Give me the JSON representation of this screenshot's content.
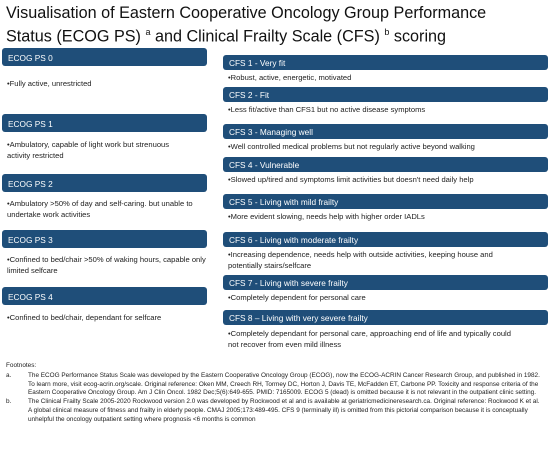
{
  "title": {
    "line1": "Visualisation of Eastern Cooperative Oncology Group Performance",
    "line2_a": "Status (ECOG PS) ",
    "sup_a": "a",
    "line2_b": " and Clinical Frailty Scale (CFS) ",
    "sup_b": "b",
    "line2_c": " scoring"
  },
  "ecog": [
    {
      "label": "ECOG PS 0",
      "desc": "•Fully active, unrestricted"
    },
    {
      "label": "ECOG PS 1",
      "desc": "•Ambulatory, capable of light work but strenuous activity restricted"
    },
    {
      "label": "ECOG PS 2",
      "desc": "•Ambulatory >50% of day and self-caring. but unable to undertake work activities"
    },
    {
      "label": "ECOG PS 3",
      "desc": "•Confined to bed/chair >50% of waking hours, capable only limited selfcare"
    },
    {
      "label": "ECOG PS 4",
      "desc": "•Confined to bed/chair, dependant for selfcare"
    }
  ],
  "cfs": [
    {
      "label": "CFS 1 - Very fit",
      "desc": "•Robust, active, energetic, motivated"
    },
    {
      "label": "CFS 2 - Fit",
      "desc": "•Less fit/active than CFS1 but no active disease symptoms"
    },
    {
      "label": "CFS 3 - Managing well",
      "desc": "•Well controlled medical problems but not regularly active beyond walking"
    },
    {
      "label": "CFS 4 - Vulnerable",
      "desc": "•Slowed up/tired and symptoms limit activities but doesn't need daily help"
    },
    {
      "label": "CFS 5 - Living with mild frailty",
      "desc": "•More evident slowing, needs help with higher order IADLs"
    },
    {
      "label": "CFS 6 - Living with moderate frailty",
      "desc": "•Increasing dependence, needs help with outside activities, keeping house and potentially stairs/selfcare"
    },
    {
      "label": "CFS 7 - Living with severe frailty",
      "desc": "•Completely dependent for personal care"
    },
    {
      "label": "CFS 8 – Living with very severe frailty",
      "desc": "•Completely dependant for personal care, approaching end of life and typically could not recover from even mild illness"
    }
  ],
  "footnotes": {
    "heading": "Footnotes:",
    "items": [
      {
        "label": "a.",
        "text": "The ECOG Performance Status Scale was developed by the Eastern Cooperative Oncology Group (ECOG), now the ECOG-ACRIN Cancer Research Group, and published in 1982. To learn more, visit ecog-acrin.org/scale. Original reference: Oken MM, Creech RH, Tormey DC, Horton J, Davis TE, McFadden ET, Carbone PP. Toxicity and response criteria of the Eastern Cooperative Oncology Group. Am J Clin Oncol. 1982 Dec;5(6):649-655. PMID: 7165009. ECOG 5 (dead) is omitted because it is not relevant in the outpatient clinic setting."
      },
      {
        "label": "b.",
        "text": "The Clinical Frailty Scale 2005-2020 Rockwood version 2.0 was developed by Rockwood et al and is available at geriatricmedicineresearch.ca. Original reference: Rockwood K et al. A global clinical measure of fitness and frailty in elderly people. CMAJ 2005;173:489-495. CFS 9 (terminally ill) is omitted from this pictorial comparison because it is conceptually unhelpful the oncology outpatient setting where prognosis <6 months is common"
      }
    ]
  }
}
